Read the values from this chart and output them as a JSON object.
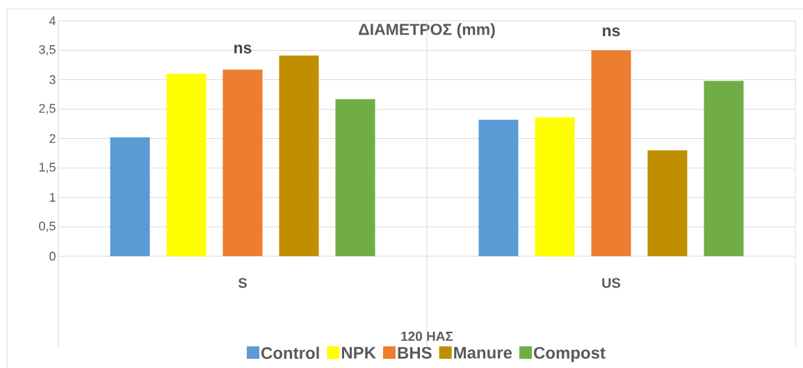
{
  "chart_data": {
    "type": "bar",
    "title": "ΔΙΑΜΕΤΡΟΣ (mm)",
    "xlabel": "120 ΗΑΣ",
    "categories": [
      "S",
      "US"
    ],
    "series": [
      {
        "name": "Control",
        "color": "#5b9bd5",
        "values": [
          2.02,
          2.32
        ]
      },
      {
        "name": "NPK",
        "color": "#ffff00",
        "values": [
          3.1,
          2.36
        ]
      },
      {
        "name": "BHS",
        "color": "#ed7d31",
        "values": [
          3.17,
          3.5
        ]
      },
      {
        "name": "Manure",
        "color": "#bf8f00",
        "values": [
          3.41,
          1.8
        ]
      },
      {
        "name": "Compost",
        "color": "#70ad47",
        "values": [
          2.67,
          2.98
        ]
      }
    ],
    "ylim": [
      0,
      4
    ],
    "yticks": [
      0,
      {
        "value": 0.5,
        "label": "0,5"
      },
      1,
      {
        "value": 1.5,
        "label": "1,5"
      },
      2,
      {
        "value": 2.5,
        "label": "2,5"
      },
      3,
      {
        "value": 3.5,
        "label": "3,5"
      },
      4
    ],
    "grid": "y",
    "legend": "bottom",
    "annotations": [
      "ns",
      "ns"
    ]
  }
}
